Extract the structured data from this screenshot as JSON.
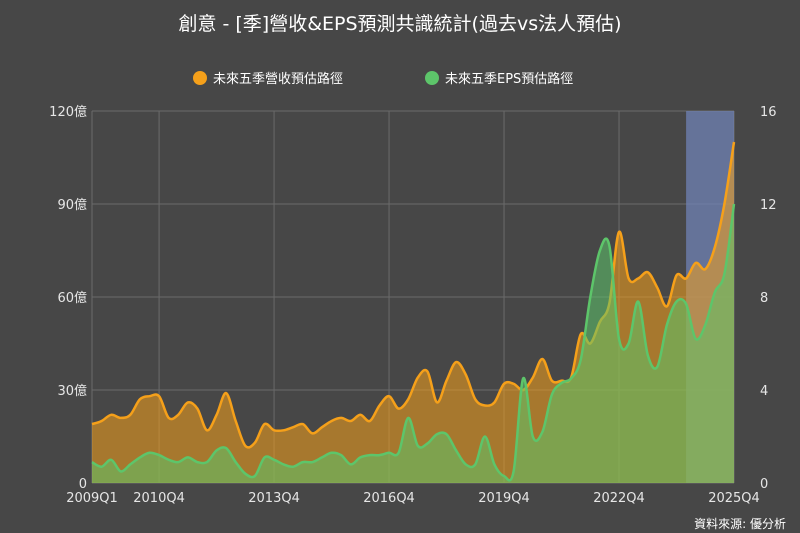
{
  "colors": {
    "background": "#474747",
    "revenue": "#f5a01a",
    "eps": "#5dc56a",
    "highlight": "#6f82b4",
    "grid": "#6b6b6b",
    "text": "#ffffff",
    "tick_text": "#e6e6e6"
  },
  "chart_data": {
    "type": "area",
    "title": "創意 - [季]營收&EPS預測共識統計(過去vs法人預估)",
    "source": "資料來源: 優分析",
    "legend_position": "top-center",
    "grid": true,
    "x": [
      "2009Q1",
      "2009Q2",
      "2009Q3",
      "2009Q4",
      "2010Q1",
      "2010Q2",
      "2010Q3",
      "2010Q4",
      "2011Q1",
      "2011Q2",
      "2011Q3",
      "2011Q4",
      "2012Q1",
      "2012Q2",
      "2012Q3",
      "2012Q4",
      "2013Q1",
      "2013Q2",
      "2013Q3",
      "2013Q4",
      "2014Q1",
      "2014Q2",
      "2014Q3",
      "2014Q4",
      "2015Q1",
      "2015Q2",
      "2015Q3",
      "2015Q4",
      "2016Q1",
      "2016Q2",
      "2016Q3",
      "2016Q4",
      "2017Q1",
      "2017Q2",
      "2017Q3",
      "2017Q4",
      "2018Q1",
      "2018Q2",
      "2018Q3",
      "2018Q4",
      "2019Q1",
      "2019Q2",
      "2019Q3",
      "2019Q4",
      "2020Q1",
      "2020Q2",
      "2020Q3",
      "2020Q4",
      "2021Q1",
      "2021Q2",
      "2021Q3",
      "2021Q4",
      "2022Q1",
      "2022Q2",
      "2022Q3",
      "2022Q4",
      "2023Q1",
      "2023Q2",
      "2023Q3",
      "2023Q4",
      "2024Q1",
      "2024Q2",
      "2024Q3",
      "2024Q4",
      "2025Q1",
      "2025Q2",
      "2025Q3",
      "2025Q4"
    ],
    "x_ticks": [
      "2009Q1",
      "2010Q4",
      "2013Q4",
      "2016Q4",
      "2019Q4",
      "2022Q4",
      "2025Q4"
    ],
    "forecast_start": "2024Q3",
    "y_left": {
      "ticks": [
        "0",
        "30億",
        "60億",
        "90億",
        "120億"
      ],
      "values": [
        0,
        30,
        60,
        90,
        120
      ],
      "range": [
        0,
        120
      ]
    },
    "y_right": {
      "ticks": [
        "0",
        "4",
        "8",
        "12",
        "16"
      ],
      "values": [
        0,
        4,
        8,
        12,
        16
      ],
      "range": [
        0,
        16
      ]
    },
    "series": [
      {
        "name": "未來五季營收預估路徑",
        "axis": "left",
        "values": [
          19,
          20,
          22,
          21,
          22,
          27,
          28,
          28,
          21,
          22,
          26,
          24,
          17,
          22,
          29,
          20,
          12,
          13,
          19,
          17,
          17,
          18,
          19,
          16,
          18,
          20,
          21,
          20,
          22,
          20,
          25,
          28,
          24,
          27,
          34,
          36,
          26,
          33,
          39,
          35,
          27,
          25,
          26,
          32,
          32,
          30,
          34,
          40,
          33,
          33,
          34,
          48,
          45,
          52,
          58,
          81,
          66,
          66,
          68,
          63,
          57,
          67,
          66,
          71,
          69,
          76,
          90,
          110
        ]
      },
      {
        "name": "未來五季EPS預估路徑",
        "axis": "right",
        "values": [
          0.9,
          0.7,
          1.0,
          0.5,
          0.8,
          1.1,
          1.3,
          1.2,
          1.0,
          0.9,
          1.1,
          0.9,
          0.9,
          1.4,
          1.5,
          0.9,
          0.4,
          0.3,
          1.1,
          1.0,
          0.8,
          0.7,
          0.9,
          0.9,
          1.1,
          1.3,
          1.2,
          0.8,
          1.1,
          1.2,
          1.2,
          1.3,
          1.3,
          2.8,
          1.6,
          1.7,
          2.1,
          2.1,
          1.4,
          0.8,
          0.8,
          2.0,
          0.8,
          0.3,
          0.5,
          4.5,
          2.0,
          2.2,
          3.8,
          4.3,
          4.5,
          5.3,
          8.0,
          10.0,
          10.2,
          6.2,
          6.0,
          7.8,
          5.5,
          5.0,
          6.8,
          7.8,
          7.7,
          6.2,
          6.8,
          8.2,
          9.0,
          12.0
        ]
      }
    ]
  }
}
